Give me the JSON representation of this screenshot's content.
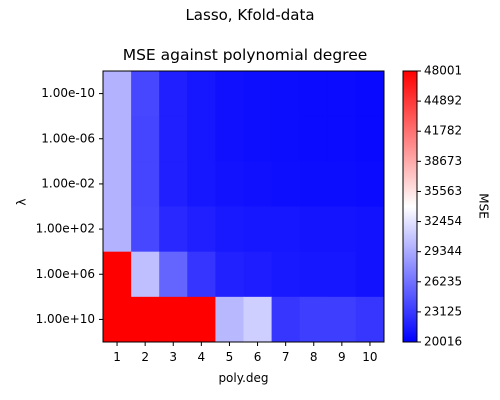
{
  "chart_data": {
    "type": "heatmap",
    "suptitle": "Lasso, Kfold-data",
    "title": "MSE against polynomial degree",
    "xlabel": "poly.deg",
    "ylabel": "λ",
    "x_categories": [
      "1",
      "2",
      "3",
      "4",
      "5",
      "6",
      "7",
      "8",
      "9",
      "10"
    ],
    "y_categories": [
      "1.00e-10",
      "1.00e-06",
      "1.00e-02",
      "1.00e+02",
      "1.00e+06",
      "1.00e+10"
    ],
    "values": [
      [
        29800,
        23900,
        21700,
        21200,
        20900,
        20800,
        20700,
        20600,
        20600,
        20500
      ],
      [
        29800,
        23800,
        21700,
        21200,
        20900,
        20800,
        20700,
        20600,
        20600,
        20500
      ],
      [
        29800,
        23800,
        21700,
        21300,
        21000,
        20900,
        20800,
        20700,
        20700,
        20600
      ],
      [
        29800,
        23900,
        22200,
        21700,
        21400,
        21300,
        21200,
        21100,
        21100,
        21000
      ],
      [
        48000,
        30500,
        25500,
        22900,
        21800,
        21600,
        21400,
        21300,
        21200,
        21000
      ],
      [
        48000,
        48000,
        48000,
        48000,
        30100,
        31300,
        23000,
        23400,
        23400,
        23000
      ]
    ],
    "colorbar": {
      "label": "MSE",
      "min": 20016,
      "max": 48001,
      "ticks": [
        "48001",
        "44892",
        "41782",
        "38673",
        "35563",
        "32454",
        "29344",
        "26235",
        "23125",
        "20016"
      ],
      "colormap": "bwr"
    }
  }
}
